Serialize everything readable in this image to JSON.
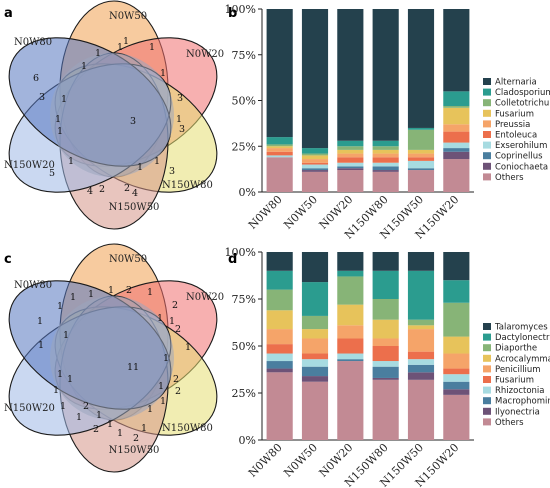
{
  "panels": {
    "a": "a",
    "b": "b",
    "c": "c",
    "d": "d"
  },
  "venn_sets": [
    "N0W50",
    "N0W20",
    "N150W80",
    "N150W50",
    "N150W20",
    "N0W80"
  ],
  "venn_colors": [
    "#f0a050",
    "#f07070",
    "#e6df72",
    "#d69688",
    "#9fb8e6",
    "#5577c0"
  ],
  "chart_data": [
    {
      "type": "venn",
      "panel": "a",
      "sets": [
        "N0W80",
        "N0W50",
        "N0W20",
        "N150W80",
        "N150W50",
        "N150W20"
      ],
      "labels": [
        {
          "text": "3"
        },
        {
          "text": "1"
        },
        {
          "text": "1"
        },
        {
          "text": "3"
        },
        {
          "text": "3"
        },
        {
          "text": "3"
        },
        {
          "text": "4"
        },
        {
          "text": "2"
        },
        {
          "text": "2"
        },
        {
          "text": "4"
        },
        {
          "text": "5"
        },
        {
          "text": "1"
        },
        {
          "text": "1"
        },
        {
          "text": "6"
        },
        {
          "text": "3"
        },
        {
          "text": "1"
        },
        {
          "text": "1"
        },
        {
          "text": "1"
        },
        {
          "text": "1"
        },
        {
          "text": "1"
        },
        {
          "text": "1"
        },
        {
          "text": "1"
        },
        {
          "text": "1"
        },
        {
          "text": "1"
        }
      ]
    },
    {
      "type": "bar",
      "stacked": true,
      "panel": "b",
      "categories": [
        "N0W80",
        "N0W50",
        "N0W20",
        "N150W80",
        "N150W50",
        "N150W20"
      ],
      "yticks": [
        "0%",
        "25%",
        "50%",
        "75%",
        "100%"
      ],
      "ylim": [
        0,
        100
      ],
      "legend_position": "right",
      "series": [
        {
          "name": "Alternaria",
          "color": "#24414d",
          "values": [
            70,
            76,
            72,
            72,
            65,
            45
          ]
        },
        {
          "name": "Cladosporium",
          "color": "#2b9c8f",
          "values": [
            4,
            3,
            3,
            3,
            1,
            8
          ]
        },
        {
          "name": "Colletotrichum",
          "color": "#87b477",
          "values": [
            1,
            1,
            2,
            2,
            11,
            1
          ]
        },
        {
          "name": "Fusarium",
          "color": "#e7c35b",
          "values": [
            1,
            2,
            2,
            2,
            2,
            9
          ]
        },
        {
          "name": "Preussia",
          "color": "#f5a469",
          "values": [
            2,
            2,
            2,
            2,
            2,
            4
          ]
        },
        {
          "name": "Entoleuca",
          "color": "#ec6f4c",
          "values": [
            2,
            1,
            3,
            3,
            2,
            6
          ]
        },
        {
          "name": "Exserohilum",
          "color": "#a7dbe1",
          "values": [
            1,
            2,
            2,
            2,
            4,
            3
          ]
        },
        {
          "name": "Coprinellus",
          "color": "#4a7e9f",
          "values": [
            0,
            1,
            1,
            2,
            1,
            2
          ]
        },
        {
          "name": "Coniochaeta",
          "color": "#6d5277",
          "values": [
            0,
            1,
            1,
            1,
            0,
            4
          ]
        },
        {
          "name": "Others",
          "color": "#c28a94",
          "values": [
            19,
            11,
            12,
            11,
            12,
            18
          ]
        }
      ]
    },
    {
      "type": "venn",
      "panel": "c",
      "sets": [
        "N0W80",
        "N0W50",
        "N0W20",
        "N150W80",
        "N150W50",
        "N150W20"
      ],
      "labels": [
        {
          "text": "11"
        },
        {
          "text": "1"
        },
        {
          "text": "2"
        },
        {
          "text": "1"
        },
        {
          "text": "2"
        },
        {
          "text": "2"
        },
        {
          "text": "1"
        },
        {
          "text": "2"
        },
        {
          "text": "2"
        },
        {
          "text": "1"
        },
        {
          "text": "2"
        },
        {
          "text": "1"
        },
        {
          "text": "1"
        },
        {
          "text": "2"
        },
        {
          "text": "1"
        },
        {
          "text": "1"
        },
        {
          "text": "1"
        },
        {
          "text": "1"
        },
        {
          "text": "1"
        },
        {
          "text": "1"
        },
        {
          "text": "1"
        },
        {
          "text": "1"
        },
        {
          "text": "2"
        },
        {
          "text": "1"
        },
        {
          "text": "1"
        },
        {
          "text": "1"
        },
        {
          "text": "1"
        },
        {
          "text": "1"
        },
        {
          "text": "1"
        },
        {
          "text": "1"
        },
        {
          "text": "1"
        },
        {
          "text": "1"
        },
        {
          "text": "1"
        }
      ]
    },
    {
      "type": "bar",
      "stacked": true,
      "panel": "d",
      "categories": [
        "N0W80",
        "N0W50",
        "N0W20",
        "N150W80",
        "N150W50",
        "N150W20"
      ],
      "yticks": [
        "0%",
        "25%",
        "50%",
        "75%",
        "100%"
      ],
      "ylim": [
        0,
        100
      ],
      "legend_position": "right",
      "series": [
        {
          "name": "Talaromyces",
          "color": "#24414d",
          "values": [
            10,
            16,
            10,
            10,
            10,
            15
          ]
        },
        {
          "name": "Dactylonectria",
          "color": "#2b9c8f",
          "values": [
            10,
            18,
            3,
            15,
            26,
            12
          ]
        },
        {
          "name": "Diaporthe",
          "color": "#87b477",
          "values": [
            11,
            7,
            15,
            11,
            3,
            18
          ]
        },
        {
          "name": "Acrocalymma",
          "color": "#e7c35b",
          "values": [
            10,
            5,
            11,
            10,
            2,
            9
          ]
        },
        {
          "name": "Penicillium",
          "color": "#f5a469",
          "values": [
            8,
            8,
            7,
            4,
            12,
            8
          ]
        },
        {
          "name": "Fusarium",
          "color": "#ec6f4c",
          "values": [
            5,
            3,
            8,
            8,
            4,
            3
          ]
        },
        {
          "name": "Rhizoctonia",
          "color": "#a7dbe1",
          "values": [
            4,
            4,
            3,
            3,
            3,
            4
          ]
        },
        {
          "name": "Macrophomina",
          "color": "#4a7e9f",
          "values": [
            4,
            5,
            1,
            6,
            4,
            4
          ]
        },
        {
          "name": "Ilyonectria",
          "color": "#6d5277",
          "values": [
            2,
            3,
            0,
            1,
            4,
            3
          ]
        },
        {
          "name": "Others",
          "color": "#c28a94",
          "values": [
            36,
            31,
            42,
            32,
            32,
            24
          ]
        }
      ]
    }
  ]
}
